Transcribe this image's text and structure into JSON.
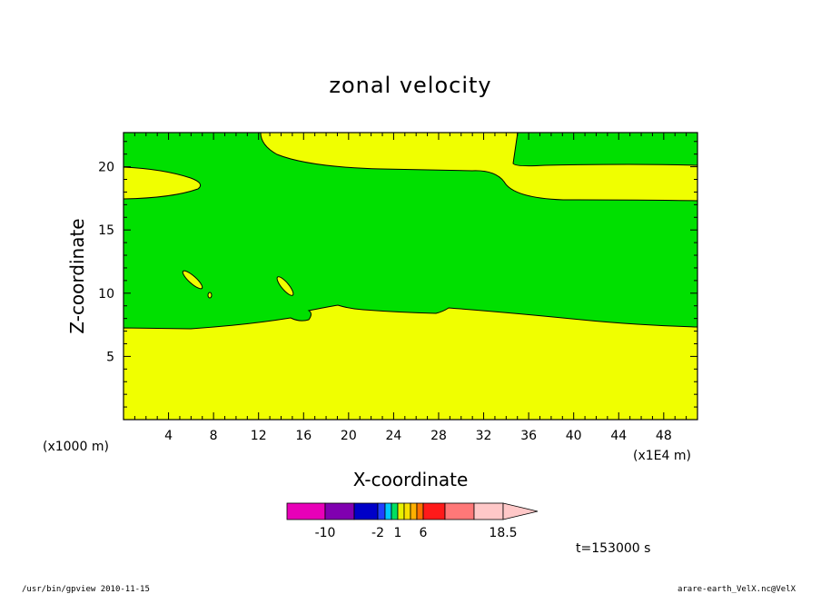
{
  "chart_data": {
    "type": "heatmap",
    "title": "zonal velocity",
    "xlabel": "X-coordinate",
    "ylabel": "Z-coordinate",
    "x_unit_label": "(x1E4 m)",
    "y_unit_label": "(x1000 m)",
    "xlim": [
      0,
      51
    ],
    "ylim": [
      0,
      22.7
    ],
    "x_ticks": [
      "4",
      "8",
      "12",
      "16",
      "20",
      "24",
      "28",
      "32",
      "36",
      "40",
      "44",
      "48"
    ],
    "y_ticks": [
      "5",
      "10",
      "15",
      "20"
    ],
    "grid": false,
    "colorbar": {
      "levels": [
        -14,
        -10,
        -6,
        -2,
        -1,
        0,
        1,
        2,
        3,
        4,
        6,
        10,
        14,
        18.5
      ],
      "colors": [
        "#e800b8",
        "#8000b0",
        "#0000c8",
        "#2040ff",
        "#00c8ff",
        "#00e060",
        "#e8f000",
        "#f8e000",
        "#ffb000",
        "#ff7000",
        "#ff1a1a",
        "#ff7878",
        "#ffc8c8"
      ],
      "tick_labels": [
        "-10",
        "-2",
        "1",
        "6",
        "18.5"
      ],
      "tick_values": [
        -10,
        -2,
        1,
        6,
        18.5
      ]
    },
    "fields": [
      {
        "name": "green",
        "color": "#00e000",
        "range": "0 to 1"
      },
      {
        "name": "yellow",
        "color": "#f0ff00",
        "range": "1 to 2"
      }
    ],
    "time_label": "t=153000 s"
  },
  "footer": {
    "left": "/usr/bin/gpview   2010-11-15",
    "right": "arare-earth_VelX.nc@VelX"
  }
}
